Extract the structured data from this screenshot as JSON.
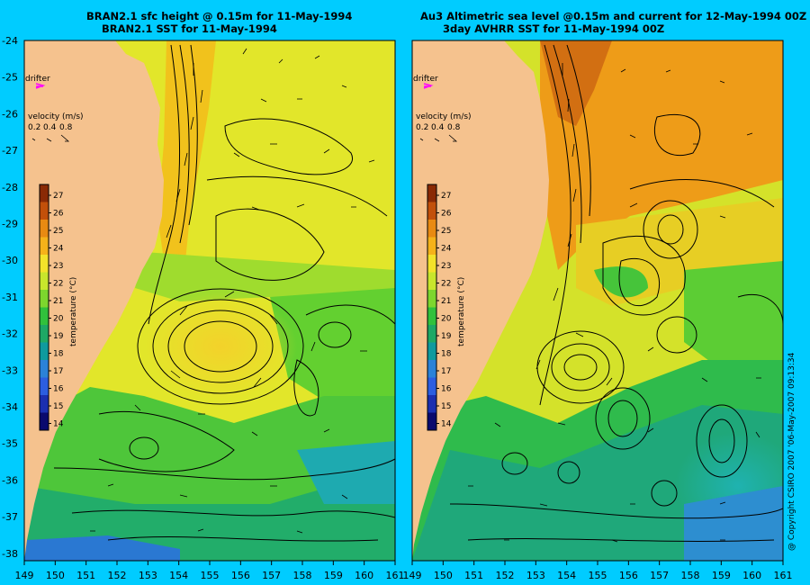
{
  "left_panel": {
    "title_line1": "BRAN2.1 sfc height @ 0.15m for 11-May-1994",
    "title_line2": "BRAN2.1 SST for 11-May-1994"
  },
  "right_panel": {
    "title_line1": "Au3 Altimetric sea level  @0.15m and current for 12-May-1994 00Z",
    "title_line2": "3day AVHRR SST for 11-May-1994 00Z"
  },
  "drifter_label": "drifter",
  "velocity_legend": {
    "title": "velocity (m/s)",
    "values": [
      "0.2",
      "0.4",
      "0.8"
    ]
  },
  "colorbar": {
    "label": "temperature (°C)",
    "ticks": [
      "27",
      "26",
      "25",
      "24",
      "23",
      "22",
      "21",
      "20",
      "19",
      "18",
      "17",
      "16",
      "15",
      "14"
    ],
    "colors": [
      "#8a2a05",
      "#c2500a",
      "#e88a12",
      "#f5b21a",
      "#f3e22a",
      "#c8e62c",
      "#7dd62e",
      "#31c13c",
      "#1ea865",
      "#0f9a9e",
      "#2b82d8",
      "#2c5ee0",
      "#1b2fb0",
      "#0a0a6e"
    ]
  },
  "lat_labels": [
    "-24",
    "-25",
    "-26",
    "-27",
    "-28",
    "-29",
    "-30",
    "-31",
    "-32",
    "-33",
    "-34",
    "-35",
    "-36",
    "-37",
    "-38"
  ],
  "lon_labels_left": [
    "149",
    "150",
    "151",
    "152",
    "153",
    "154",
    "155",
    "156",
    "157",
    "158",
    "159",
    "160",
    "161"
  ],
  "lon_labels_right": [
    "149",
    "150",
    "151",
    "152",
    "153",
    "154",
    "155",
    "156",
    "157",
    "158",
    "159",
    "160",
    "161"
  ],
  "copyright": "@ Copyright CSIRO 2007 '06-May-2007 09:13:34",
  "colors": {
    "background": "#00ccff",
    "land": "#f5c28e",
    "drifter": "#ff00ff"
  }
}
